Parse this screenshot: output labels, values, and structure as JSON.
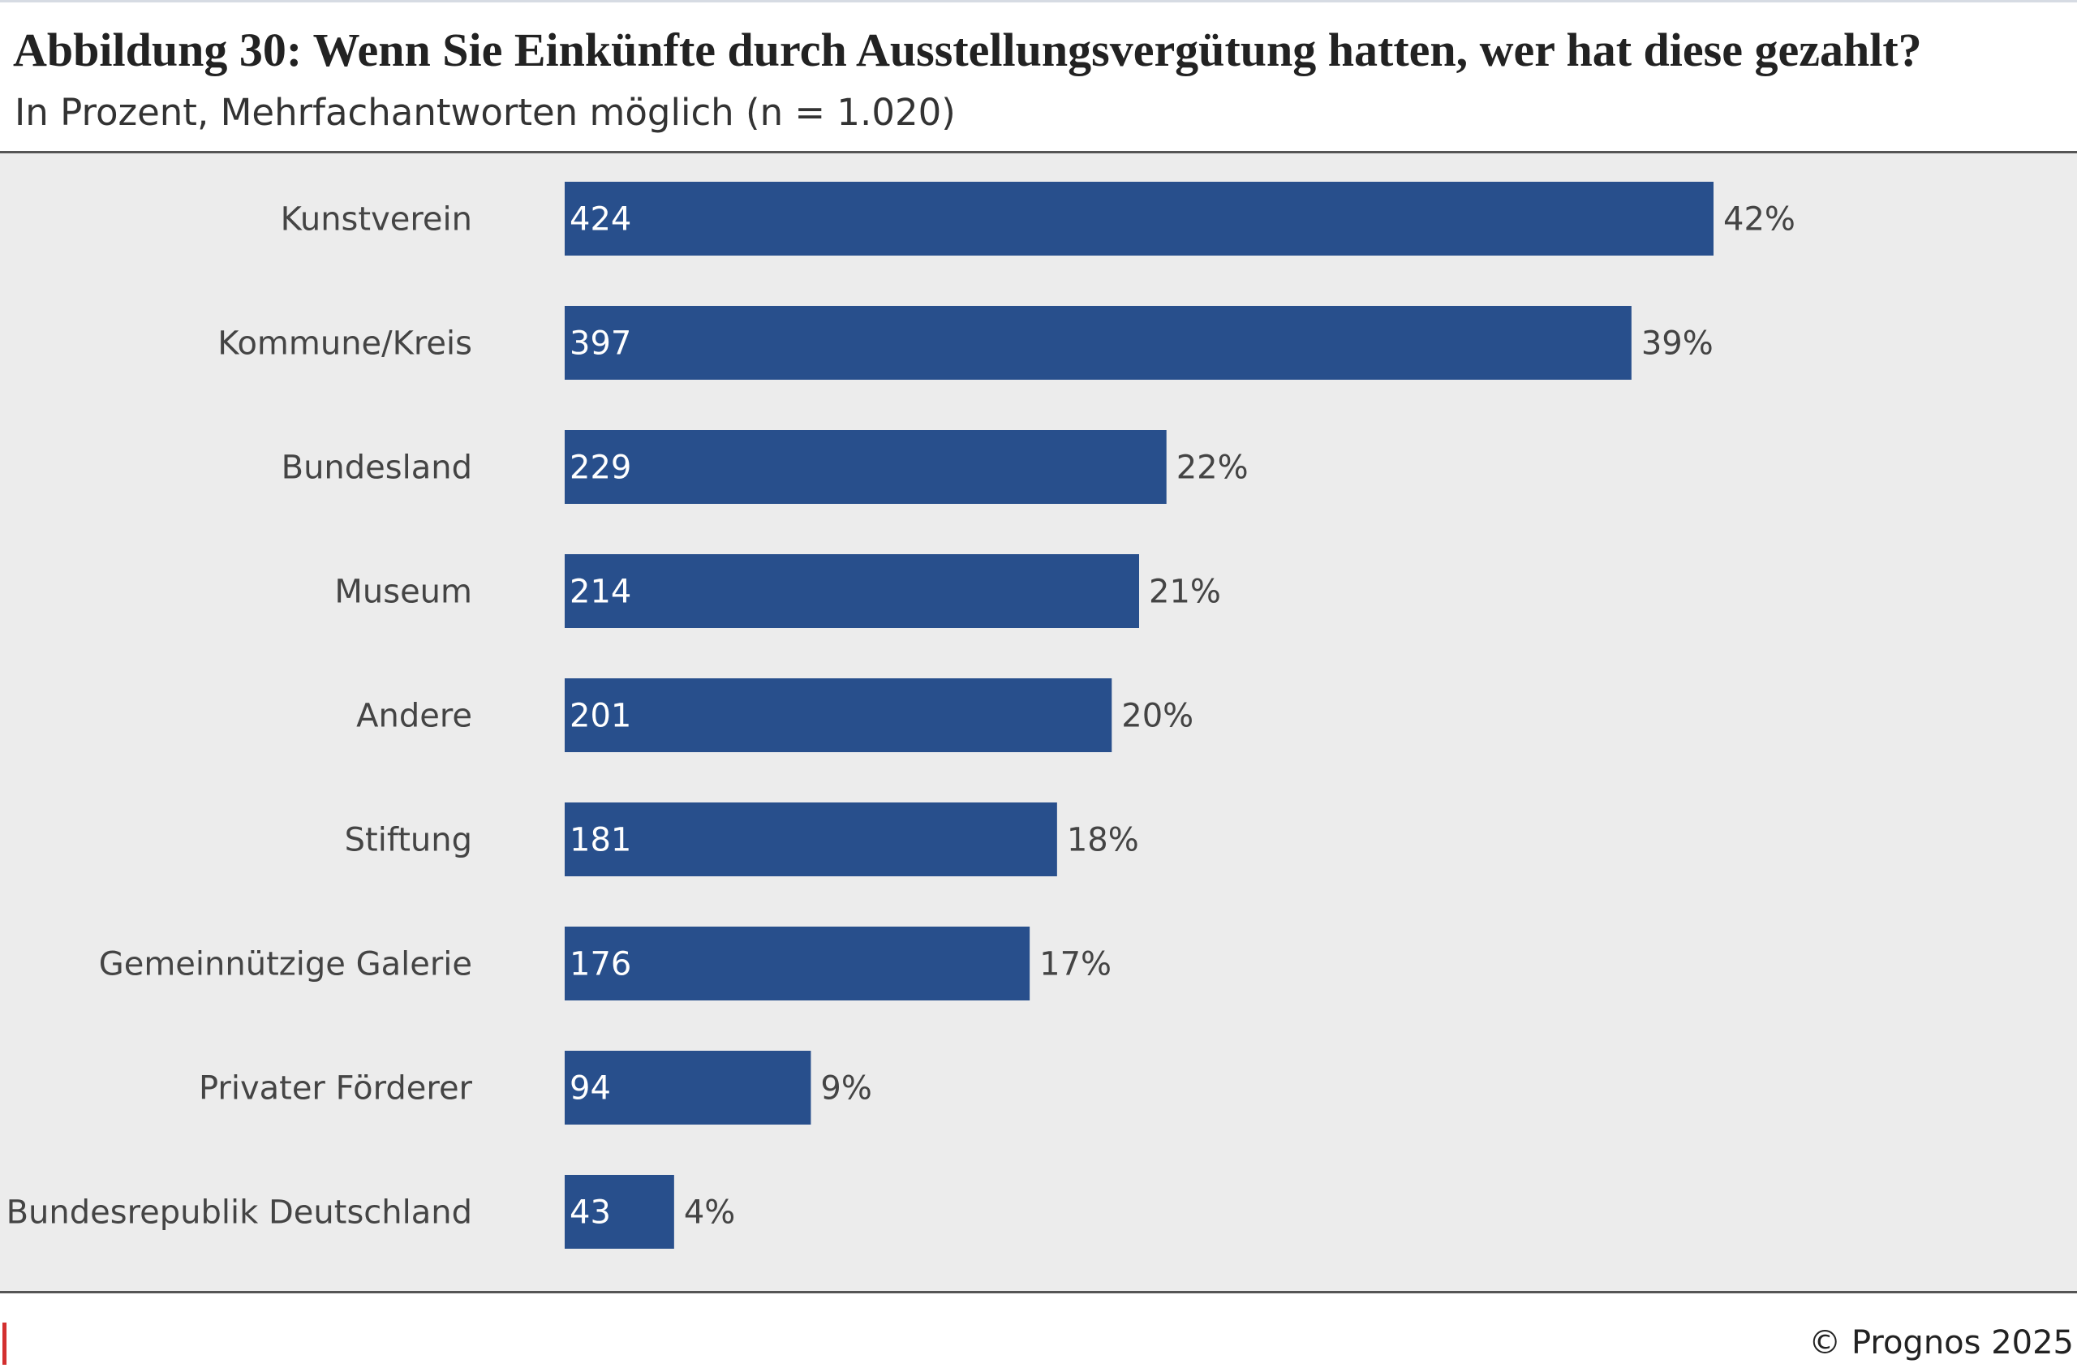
{
  "title": "Abbildung 30: Wenn Sie Einkünfte durch Ausstellungsvergütung hatten, wer hat diese gezahlt?",
  "subtitle": "In Prozent, Mehrfachantworten möglich (n = 1.020)",
  "footer": "© Prognos 2025",
  "colors": {
    "bar": "#284f8c",
    "accent": "#d32f2f",
    "plot_background": "#ececec"
  },
  "chart_data": {
    "type": "bar",
    "orientation": "horizontal",
    "title": "Abbildung 30: Wenn Sie Einkünfte durch Ausstellungsvergütung hatten, wer hat diese gezahlt?",
    "subtitle": "In Prozent, Mehrfachantworten möglich (n = 1.020)",
    "xlabel": "",
    "ylabel": "",
    "xlim": [
      0,
      42
    ],
    "grid": false,
    "legend": "none",
    "categories": [
      "Kunstverein",
      "Kommune/Kreis",
      "Bundesland",
      "Museum",
      "Andere",
      "Stiftung",
      "Gemeinnützige Galerie",
      "Privater Förderer",
      "Bundesrepublik Deutschland"
    ],
    "counts": [
      424,
      397,
      229,
      214,
      201,
      181,
      176,
      94,
      43
    ],
    "values": [
      42,
      39,
      22,
      21,
      20,
      18,
      17,
      9,
      4
    ],
    "count_labels": [
      "424",
      "397",
      "229",
      "214",
      "201",
      "181",
      "176",
      "94",
      "43"
    ],
    "value_labels": [
      "42%",
      "39%",
      "22%",
      "21%",
      "20%",
      "18%",
      "17%",
      "9%",
      "4%"
    ]
  }
}
